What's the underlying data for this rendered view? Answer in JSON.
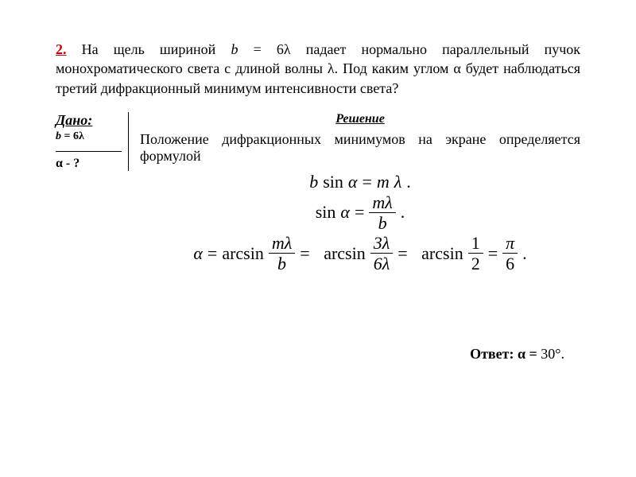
{
  "colors": {
    "accent": "#c00000",
    "text": "#000000",
    "background": "#ffffff"
  },
  "typography": {
    "body_fontsize_pt": 14,
    "math_fontsize_pt": 16,
    "font_family": "Times New Roman"
  },
  "problem": {
    "number": "2.",
    "statement_before_b": " На щель шириной ",
    "b_sym": "b",
    "eq_6l": " = 6λ  падает нормально параллельный пучок монохроматического света с длиной волны λ. Под каким углом α будет наблюдаться третий дифракционный минимум интенсивности света?"
  },
  "given": {
    "heading": "Дано:",
    "line1_lhs": "b",
    "line1_rhs": " = 6λ",
    "find": "α - ?"
  },
  "solution": {
    "heading": "Решение",
    "intro": "Положение дифракционных минимумов на экране определяется формулой",
    "eq1": {
      "lhs_b": "b",
      "sin": "sin",
      "alpha": "α",
      "eq": "=",
      "rhs_m": "m",
      "rhs_l": "λ",
      "dot": "."
    },
    "eq2": {
      "sin": "sin",
      "alpha": "α",
      "eq": "=",
      "num_m": "m",
      "num_l": "λ",
      "den_b": "b",
      "dot": "."
    },
    "eq3": {
      "alpha": "α",
      "eq": "=",
      "arcsin": "arcsin",
      "f1_num_m": "m",
      "f1_num_l": "λ",
      "f1_den_b": "b",
      "f2_num": "3λ",
      "f2_den": "6λ",
      "f3_num": "1",
      "f3_den": "2",
      "f4_num": "π",
      "f4_den": "6",
      "dot": "."
    }
  },
  "answer": {
    "label": "Ответ:  α = ",
    "value": "30°."
  }
}
